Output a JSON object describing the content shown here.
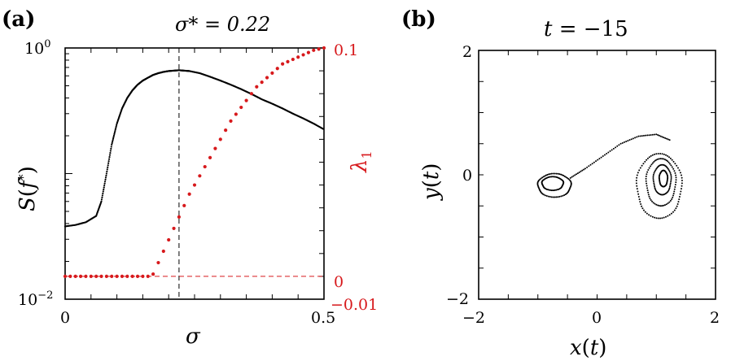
{
  "chart_data": [
    {
      "type": "scatter",
      "panel_label": "(a)",
      "title": "σ* = 0.22",
      "xlabel": "σ",
      "ylabel_left": "S(f*)",
      "ylabel_right": "λ1",
      "xlim": [
        0,
        0.5
      ],
      "ylim_left_log": [
        0.01,
        1
      ],
      "ylim_right": [
        -0.01,
        0.1
      ],
      "left_scale": "log",
      "x_ticks": [
        "0",
        "0.5"
      ],
      "left_ticks": [
        "10^-2",
        "10^0"
      ],
      "right_ticks": [
        "0.1",
        "0",
        "−0.01"
      ],
      "vertical_line_x": 0.22,
      "zero_line_right": 0,
      "colors": {
        "S": "#000000",
        "lambda": "#d7191c"
      },
      "series": [
        {
          "name": "S(f*)",
          "axis": "left",
          "x": [
            0,
            0.02,
            0.04,
            0.06,
            0.07,
            0.08,
            0.09,
            0.1,
            0.11,
            0.12,
            0.13,
            0.14,
            0.15,
            0.16,
            0.17,
            0.18,
            0.19,
            0.2,
            0.21,
            0.22,
            0.23,
            0.24,
            0.26,
            0.28,
            0.3,
            0.32,
            0.34,
            0.36,
            0.38,
            0.4,
            0.42,
            0.44,
            0.46,
            0.48,
            0.5
          ],
          "y": [
            0.038,
            0.039,
            0.041,
            0.046,
            0.06,
            0.1,
            0.17,
            0.25,
            0.33,
            0.4,
            0.46,
            0.51,
            0.55,
            0.58,
            0.61,
            0.63,
            0.645,
            0.655,
            0.66,
            0.665,
            0.66,
            0.655,
            0.63,
            0.59,
            0.55,
            0.51,
            0.47,
            0.43,
            0.39,
            0.36,
            0.33,
            0.3,
            0.275,
            0.25,
            0.225
          ]
        },
        {
          "name": "λ1",
          "axis": "right",
          "x": [
            0,
            0.01,
            0.02,
            0.03,
            0.04,
            0.05,
            0.06,
            0.07,
            0.08,
            0.09,
            0.1,
            0.11,
            0.12,
            0.13,
            0.14,
            0.15,
            0.16,
            0.17,
            0.18,
            0.19,
            0.2,
            0.21,
            0.22,
            0.23,
            0.24,
            0.25,
            0.26,
            0.27,
            0.28,
            0.29,
            0.3,
            0.31,
            0.32,
            0.33,
            0.34,
            0.35,
            0.36,
            0.37,
            0.38,
            0.39,
            0.4,
            0.41,
            0.42,
            0.43,
            0.44,
            0.45,
            0.46,
            0.47,
            0.48,
            0.49,
            0.5
          ],
          "y": [
            0,
            0,
            0,
            0,
            0,
            0,
            0,
            0,
            0,
            0,
            0,
            0,
            0,
            0,
            0,
            0,
            0,
            0.001,
            0.006,
            0.011,
            0.016,
            0.021,
            0.026,
            0.031,
            0.036,
            0.04,
            0.044,
            0.048,
            0.052,
            0.056,
            0.06,
            0.064,
            0.068,
            0.071,
            0.074,
            0.077,
            0.08,
            0.083,
            0.085,
            0.087,
            0.089,
            0.091,
            0.093,
            0.094,
            0.095,
            0.096,
            0.097,
            0.098,
            0.099,
            0.0995,
            0.1
          ]
        }
      ]
    },
    {
      "type": "scatter",
      "panel_label": "(b)",
      "title": "t = −15",
      "xlabel": "x(t)",
      "ylabel": "y(t)",
      "xlim": [
        -2,
        2
      ],
      "ylim": [
        -2,
        2
      ],
      "x_ticks": [
        "−2",
        "0",
        "2"
      ],
      "y_ticks": [
        "2",
        "0",
        "−2"
      ],
      "description_points": "chaotic attractor snapshot",
      "loops": [
        {
          "cx": -0.72,
          "cy": -0.17,
          "rx": 0.28,
          "ry": 0.19
        },
        {
          "cx": -0.75,
          "cy": -0.14,
          "rx": 0.18,
          "ry": 0.11
        },
        {
          "cx": 1.05,
          "cy": -0.18,
          "rx": 0.38,
          "ry": 0.52
        },
        {
          "cx": 1.08,
          "cy": -0.12,
          "rx": 0.25,
          "ry": 0.38
        },
        {
          "cx": 1.1,
          "cy": -0.08,
          "rx": 0.15,
          "ry": 0.24
        },
        {
          "cx": 1.12,
          "cy": -0.06,
          "rx": 0.07,
          "ry": 0.13
        }
      ],
      "bridge": [
        [
          -0.45,
          -0.05
        ],
        [
          -0.2,
          0.1
        ],
        [
          0.1,
          0.3
        ],
        [
          0.4,
          0.5
        ],
        [
          0.7,
          0.62
        ],
        [
          1.0,
          0.65
        ],
        [
          1.25,
          0.55
        ]
      ]
    }
  ]
}
